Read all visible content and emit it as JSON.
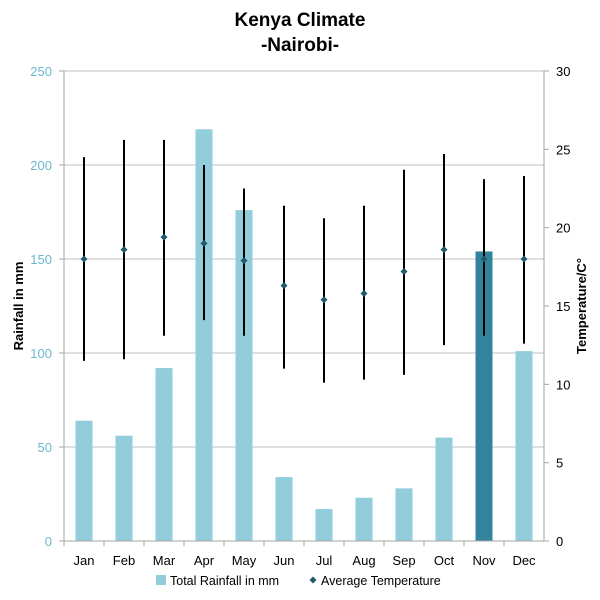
{
  "chart_data": {
    "type": "bar+errorbar",
    "title": "Kenya Climate",
    "subtitle": "-Nairobi-",
    "categories": [
      "Jan",
      "Feb",
      "Mar",
      "Apr",
      "May",
      "Jun",
      "Jul",
      "Aug",
      "Sep",
      "Oct",
      "Nov",
      "Dec"
    ],
    "y_left": {
      "label": "Rainfall in mm",
      "ticks": [
        "0",
        "50",
        "100",
        "150",
        "200",
        "250"
      ],
      "range": [
        0,
        250
      ]
    },
    "y_right": {
      "label": "Temperature/C°",
      "ticks": [
        "0",
        "5",
        "10",
        "15",
        "20",
        "25",
        "30"
      ],
      "range": [
        0,
        30
      ]
    },
    "series": [
      {
        "name": "Total Rainfall in mm",
        "kind": "bar",
        "axis": "left",
        "color": "#92CDDC",
        "highlight_color": "#31849B",
        "highlight_index": 10,
        "values": [
          64,
          56,
          92,
          219,
          176,
          34,
          17,
          23,
          28,
          55,
          154,
          101
        ]
      },
      {
        "name": "Average Temperature",
        "kind": "errorbar",
        "axis": "right",
        "marker_color": "#215A6B",
        "line_color": "#000000",
        "values": [
          18.0,
          18.6,
          19.4,
          19.0,
          17.9,
          16.3,
          15.4,
          15.8,
          17.2,
          18.6,
          18.0,
          18.0
        ],
        "max": [
          24.5,
          25.6,
          25.6,
          24.0,
          22.5,
          21.4,
          20.6,
          21.4,
          23.7,
          24.7,
          23.1,
          23.3
        ],
        "min": [
          11.5,
          11.6,
          13.1,
          14.1,
          13.1,
          11.0,
          10.1,
          10.3,
          10.6,
          12.5,
          13.1,
          12.6
        ]
      }
    ],
    "legend": {
      "placement": "bottom"
    },
    "grid": true
  }
}
